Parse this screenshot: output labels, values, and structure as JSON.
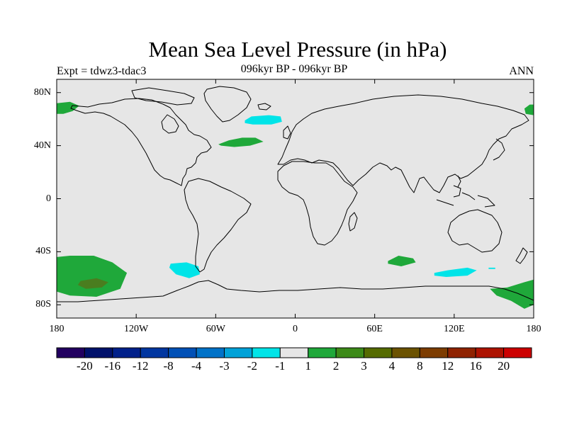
{
  "header": {
    "title": "Mean Sea Level Pressure (in hPa)",
    "left_subtitle": "Expt = tdwz3-tdac3",
    "center_subtitle": "096kyr BP - 096kyr BP",
    "right_subtitle": "ANN"
  },
  "map": {
    "projection": "cylindrical-equidistant",
    "background_color": "#e6e6e6",
    "lon_range": [
      -180,
      180
    ],
    "lat_range": [
      -90,
      90
    ],
    "lat_ticks": [
      {
        "value": 80,
        "label": "80N"
      },
      {
        "value": 40,
        "label": "40N"
      },
      {
        "value": 0,
        "label": "0"
      },
      {
        "value": -40,
        "label": "40S"
      },
      {
        "value": -80,
        "label": "80S"
      }
    ],
    "lon_ticks": [
      {
        "value": -180,
        "label": "180"
      },
      {
        "value": -120,
        "label": "120W"
      },
      {
        "value": -60,
        "label": "60W"
      },
      {
        "value": 0,
        "label": "0"
      },
      {
        "value": 60,
        "label": "60E"
      },
      {
        "value": 120,
        "label": "120E"
      },
      {
        "value": 180,
        "label": "180"
      }
    ],
    "anomaly_regions": [
      {
        "name": "north-pacific-west",
        "color": "#1fa83a",
        "points": [
          [
            -180,
            72
          ],
          [
            -170,
            73
          ],
          [
            -163,
            70
          ],
          [
            -168,
            66
          ],
          [
            -175,
            64
          ],
          [
            -180,
            64
          ]
        ]
      },
      {
        "name": "north-pacific-east",
        "color": "#1fa83a",
        "points": [
          [
            180,
            63
          ],
          [
            174,
            64
          ],
          [
            173,
            68
          ],
          [
            177,
            71
          ],
          [
            180,
            71
          ]
        ]
      },
      {
        "name": "north-atlantic-positive",
        "color": "#1fa83a",
        "points": [
          [
            -58,
            41
          ],
          [
            -50,
            44
          ],
          [
            -40,
            46
          ],
          [
            -30,
            46
          ],
          [
            -24,
            43
          ],
          [
            -34,
            40
          ],
          [
            -46,
            39
          ],
          [
            -56,
            40
          ]
        ]
      },
      {
        "name": "north-atlantic-negative",
        "color": "#00e4e8",
        "points": [
          [
            -38,
            59
          ],
          [
            -33,
            62
          ],
          [
            -20,
            63
          ],
          [
            -11,
            62
          ],
          [
            -10,
            58
          ],
          [
            -18,
            56
          ],
          [
            -32,
            56
          ],
          [
            -38,
            57
          ]
        ]
      },
      {
        "name": "south-pacific-positive",
        "color": "#1fa83a",
        "points": [
          [
            -180,
            -44
          ],
          [
            -170,
            -43
          ],
          [
            -152,
            -43
          ],
          [
            -138,
            -48
          ],
          [
            -127,
            -56
          ],
          [
            -132,
            -68
          ],
          [
            -150,
            -74
          ],
          [
            -170,
            -73
          ],
          [
            -180,
            -70
          ]
        ]
      },
      {
        "name": "south-pacific-core",
        "color": "#4a7d1f",
        "points": [
          [
            -162,
            -62
          ],
          [
            -150,
            -60
          ],
          [
            -141,
            -63
          ],
          [
            -146,
            -67
          ],
          [
            -158,
            -68
          ],
          [
            -164,
            -65
          ]
        ]
      },
      {
        "name": "south-pacific-negative",
        "color": "#00e4e8",
        "points": [
          [
            -94,
            -49
          ],
          [
            -82,
            -48
          ],
          [
            -73,
            -51
          ],
          [
            -72,
            -57
          ],
          [
            -80,
            -60
          ],
          [
            -90,
            -57
          ],
          [
            -95,
            -52
          ]
        ]
      },
      {
        "name": "indian-ocean-positive",
        "color": "#1fa83a",
        "points": [
          [
            70,
            -47
          ],
          [
            78,
            -43
          ],
          [
            89,
            -45
          ],
          [
            91,
            -48
          ],
          [
            80,
            -51
          ],
          [
            70,
            -49
          ]
        ]
      },
      {
        "name": "indian-ocean-negative",
        "color": "#00e4e8",
        "points": [
          [
            105,
            -56
          ],
          [
            115,
            -54
          ],
          [
            130,
            -52
          ],
          [
            137,
            -54
          ],
          [
            130,
            -58
          ],
          [
            114,
            -59
          ],
          [
            105,
            -58
          ]
        ]
      },
      {
        "name": "ross-sea-positive",
        "color": "#1fa83a",
        "points": [
          [
            147,
            -68
          ],
          [
            160,
            -67
          ],
          [
            173,
            -63
          ],
          [
            180,
            -61
          ],
          [
            180,
            -80
          ],
          [
            173,
            -83
          ],
          [
            163,
            -77
          ],
          [
            152,
            -73
          ]
        ]
      },
      {
        "name": "small-negative-spot",
        "color": "#00e4e8",
        "points": [
          [
            146,
            -52
          ],
          [
            151,
            -52
          ],
          [
            151,
            -53
          ],
          [
            146,
            -53
          ]
        ]
      }
    ]
  },
  "colorbar": {
    "colors": [
      "#220060",
      "#00116b",
      "#00208a",
      "#0036a0",
      "#0050b6",
      "#0072c8",
      "#00a2d8",
      "#00e4e8",
      "#e6e6e6",
      "#1fa83a",
      "#3c8a18",
      "#556b00",
      "#6b5200",
      "#7d3c00",
      "#8f2200",
      "#ad1200",
      "#cc0000"
    ],
    "labels": [
      "-20",
      "-16",
      "-12",
      "-8",
      "-4",
      "-3",
      "-2",
      "-1",
      "1",
      "2",
      "3",
      "4",
      "8",
      "12",
      "16",
      "20"
    ]
  }
}
